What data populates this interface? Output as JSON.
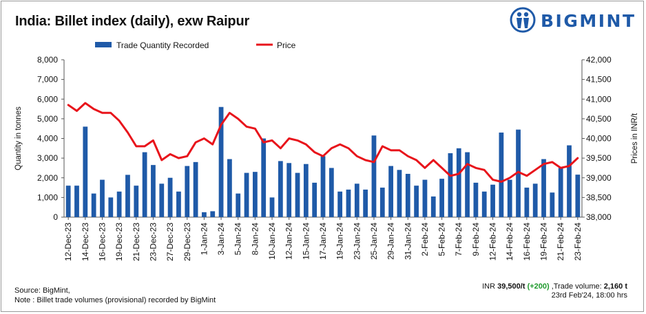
{
  "header": {
    "title": "India: Billet index (daily), exw Raipur",
    "brand": "BIGMINT"
  },
  "chart_data": {
    "type": "bar+line",
    "xlabel": "",
    "ylabel": "Quantity in tonnes",
    "y2label": "Prices in INR/t",
    "ylim": [
      0,
      8000
    ],
    "y2lim": [
      38000,
      42000
    ],
    "yticks": [
      "0",
      "1,000",
      "2,000",
      "3,000",
      "4,000",
      "5,000",
      "6,000",
      "7,000",
      "8,000"
    ],
    "y2ticks": [
      "38,000",
      "38,500",
      "39,000",
      "39,500",
      "40,000",
      "40,500",
      "41,000",
      "41,500",
      "42,000"
    ],
    "x_tick_labels": [
      "12-Dec-23",
      "14-Dec-23",
      "16-Dec-23",
      "19-Dec-23",
      "21-Dec-23",
      "23-Dec-23",
      "27-Dec-23",
      "29-Dec-23",
      "1-Jan-24",
      "3-Jan-24",
      "5-Jan-24",
      "8-Jan-24",
      "10-Jan-24",
      "12-Jan-24",
      "15-Jan-24",
      "17-Jan-24",
      "19-Jan-24",
      "23-Jan-24",
      "25-Jan-24",
      "29-Jan-24",
      "31-Jan-24",
      "2-Feb-24",
      "5-Feb-24",
      "7-Feb-24",
      "9-Feb-24",
      "12-Feb-24",
      "14-Feb-24",
      "16-Feb-24",
      "19-Feb-24",
      "21-Feb-24",
      "23-Feb-24"
    ],
    "legend_placement": "top",
    "grid": false,
    "series": [
      {
        "name": "Trade Quantity Recorded",
        "kind": "bar",
        "color": "#1f5aa8",
        "values": [
          1600,
          1600,
          4600,
          1200,
          1900,
          1000,
          1300,
          2150,
          1600,
          3300,
          2650,
          1700,
          2000,
          1300,
          2600,
          2800,
          250,
          300,
          5600,
          2950,
          1200,
          2250,
          2300,
          4000,
          1000,
          2850,
          2750,
          2250,
          2700,
          1750,
          3100,
          2500,
          1300,
          1400,
          1700,
          1400,
          4150,
          1500,
          2600,
          2400,
          2200,
          1600,
          1900,
          1050,
          1950,
          3250,
          3500,
          3300,
          1750,
          1300,
          1650,
          4300,
          1900,
          4450,
          1500,
          1700,
          2950,
          1250,
          2500,
          3650,
          2160
        ]
      },
      {
        "name": "Price",
        "kind": "line",
        "color": "#e8141b",
        "values": [
          40850,
          40700,
          40900,
          40750,
          40650,
          40650,
          40450,
          40150,
          39800,
          39800,
          39950,
          39450,
          39600,
          39500,
          39550,
          39900,
          40000,
          39850,
          40350,
          40650,
          40500,
          40300,
          40250,
          39900,
          39950,
          39750,
          40000,
          39950,
          39850,
          39650,
          39550,
          39750,
          39850,
          39750,
          39550,
          39450,
          39400,
          39800,
          39700,
          39700,
          39550,
          39450,
          39250,
          39450,
          39250,
          39050,
          39100,
          39350,
          39250,
          39200,
          38950,
          38900,
          39000,
          39150,
          39050,
          39200,
          39350,
          39400,
          39250,
          39300,
          39500
        ]
      }
    ]
  },
  "footer": {
    "source_line1": "Source: BigMint,",
    "source_line2": "Note : Billet trade volumes (provisional) recorded by BigMint",
    "price_prefix": "INR ",
    "price_value": "39,500/t",
    "price_change": "(+200)",
    "volume_label": " ,Trade volume: ",
    "volume_value": "2,160 t",
    "timestamp": "23rd Feb'24, 18:00 hrs"
  }
}
